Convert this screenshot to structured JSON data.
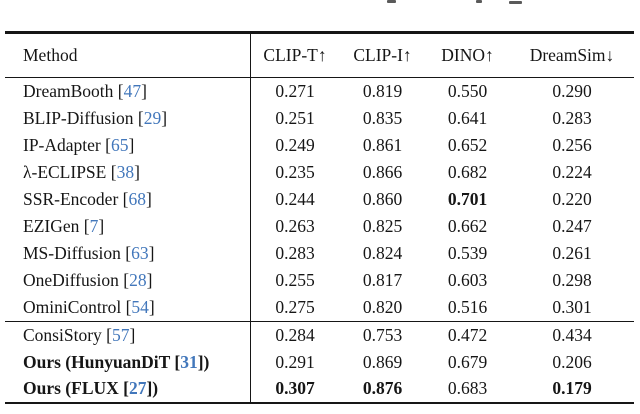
{
  "table": {
    "headers": [
      "Method",
      "CLIP-T↑",
      "CLIP-I↑",
      "DINO↑",
      "DreamSim↓"
    ],
    "groups": [
      {
        "rows": [
          {
            "method_pre": "DreamBooth [",
            "ref": "47",
            "method_post": "]",
            "bold_method": false,
            "values": [
              "0.271",
              "0.819",
              "0.550",
              "0.290"
            ],
            "bold": [
              false,
              false,
              false,
              false
            ]
          },
          {
            "method_pre": "BLIP-Diffusion [",
            "ref": "29",
            "method_post": "]",
            "bold_method": false,
            "values": [
              "0.251",
              "0.835",
              "0.641",
              "0.283"
            ],
            "bold": [
              false,
              false,
              false,
              false
            ]
          },
          {
            "method_pre": "IP-Adapter [",
            "ref": "65",
            "method_post": "]",
            "bold_method": false,
            "values": [
              "0.249",
              "0.861",
              "0.652",
              "0.256"
            ],
            "bold": [
              false,
              false,
              false,
              false
            ]
          },
          {
            "method_pre": "λ-ECLIPSE [",
            "ref": "38",
            "method_post": "]",
            "bold_method": false,
            "values": [
              "0.235",
              "0.866",
              "0.682",
              "0.224"
            ],
            "bold": [
              false,
              false,
              false,
              false
            ]
          },
          {
            "method_pre": "SSR-Encoder [",
            "ref": "68",
            "method_post": "]",
            "bold_method": false,
            "values": [
              "0.244",
              "0.860",
              "0.701",
              "0.220"
            ],
            "bold": [
              false,
              false,
              true,
              false
            ]
          },
          {
            "method_pre": "EZIGen [",
            "ref": "7",
            "method_post": "]",
            "bold_method": false,
            "values": [
              "0.263",
              "0.825",
              "0.662",
              "0.247"
            ],
            "bold": [
              false,
              false,
              false,
              false
            ]
          },
          {
            "method_pre": "MS-Diffusion [",
            "ref": "63",
            "method_post": "]",
            "bold_method": false,
            "values": [
              "0.283",
              "0.824",
              "0.539",
              "0.261"
            ],
            "bold": [
              false,
              false,
              false,
              false
            ]
          },
          {
            "method_pre": "OneDiffusion [",
            "ref": "28",
            "method_post": "]",
            "bold_method": false,
            "values": [
              "0.255",
              "0.817",
              "0.603",
              "0.298"
            ],
            "bold": [
              false,
              false,
              false,
              false
            ]
          },
          {
            "method_pre": "OminiControl [",
            "ref": "54",
            "method_post": "]",
            "bold_method": false,
            "values": [
              "0.275",
              "0.820",
              "0.516",
              "0.301"
            ],
            "bold": [
              false,
              false,
              false,
              false
            ]
          }
        ]
      },
      {
        "rows": [
          {
            "method_pre": "ConsiStory [",
            "ref": "57",
            "method_post": "]",
            "bold_method": false,
            "values": [
              "0.284",
              "0.753",
              "0.472",
              "0.434"
            ],
            "bold": [
              false,
              false,
              false,
              false
            ]
          },
          {
            "method_pre": "Ours (HunyuanDiT [",
            "ref": "31",
            "method_post": "])",
            "bold_method": true,
            "values": [
              "0.291",
              "0.869",
              "0.679",
              "0.206"
            ],
            "bold": [
              false,
              false,
              false,
              false
            ]
          },
          {
            "method_pre": "Ours (FLUX [",
            "ref": "27",
            "method_post": "])",
            "bold_method": true,
            "values": [
              "0.307",
              "0.876",
              "0.683",
              "0.179"
            ],
            "bold": [
              true,
              true,
              false,
              true
            ]
          }
        ]
      }
    ]
  },
  "colors": {
    "citation_blue": "#4277bb",
    "text": "#161616",
    "background": "#ffffff"
  }
}
